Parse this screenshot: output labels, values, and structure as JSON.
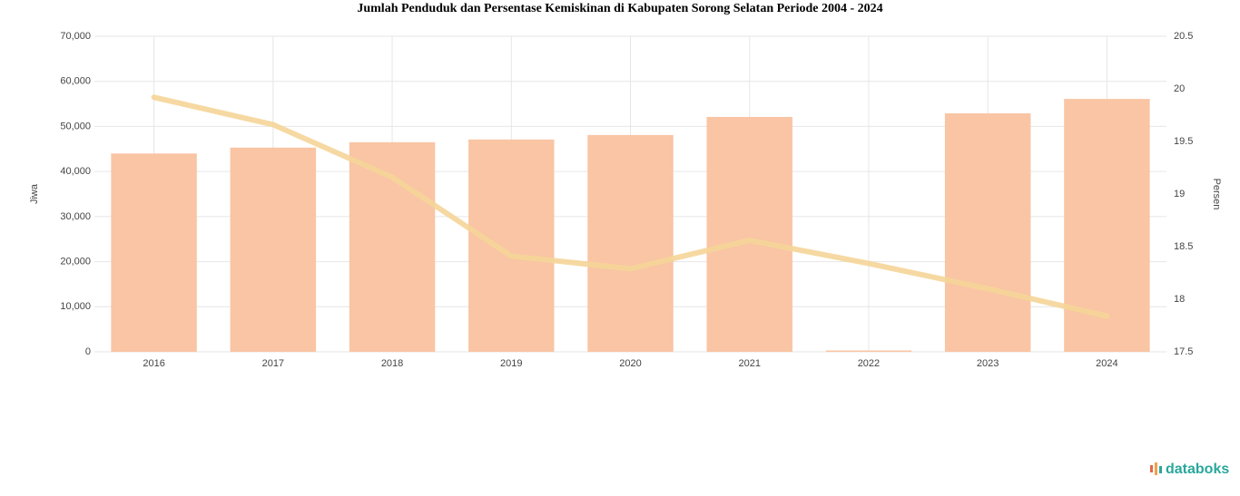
{
  "chart_data": {
    "type": "bar_line",
    "title": "Jumlah Penduduk dan Persentase Kemiskinan di Kabupaten Sorong Selatan Periode 2004 - 2024",
    "ylabel": "Jiwa",
    "y2label": "Persen",
    "categories": [
      "2016",
      "2017",
      "2018",
      "2019",
      "2020",
      "2021",
      "2022",
      "2023",
      "2024"
    ],
    "series": [
      {
        "type": "bar",
        "color": "#f9c5a4",
        "values": [
          44000,
          45300,
          46500,
          47100,
          48100,
          52100,
          300,
          52900,
          56100
        ]
      },
      {
        "type": "line",
        "axis": "y2",
        "color": "#f5d598",
        "values": [
          19.92,
          19.66,
          19.16,
          18.41,
          18.29,
          18.56,
          18.34,
          18.1,
          17.84
        ]
      }
    ],
    "ylim": [
      0,
      70000
    ],
    "yticks": [
      0,
      {
        "value": 10000,
        "label": "10,000"
      },
      {
        "value": 20000,
        "label": "20,000"
      },
      {
        "value": 30000,
        "label": "30,000"
      },
      {
        "value": 40000,
        "label": "40,000"
      },
      {
        "value": 50000,
        "label": "50,000"
      },
      {
        "value": 60000,
        "label": "60,000"
      },
      {
        "value": 70000,
        "label": "70,000"
      }
    ],
    "y2lim": [
      17.5,
      20.5
    ],
    "y2ticks": [
      17.5,
      18,
      18.5,
      19,
      19.5,
      20,
      20.5
    ],
    "grid": true,
    "source": "databoks"
  }
}
